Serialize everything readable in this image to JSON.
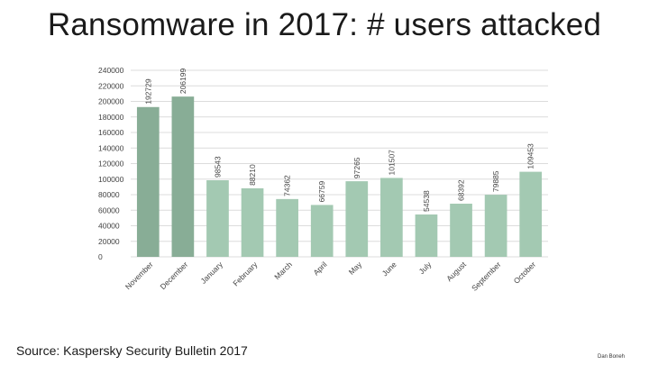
{
  "slide": {
    "title": "Ransomware in 2017:  # users attacked",
    "source": "Source: Kaspersky Security Bulletin 2017",
    "author": "Dan Boneh"
  },
  "colors": {
    "bar_dark": "#88ad96",
    "bar_light": "#a3c9b2",
    "grid": "#dcdcdc",
    "tick_text": "#444444"
  },
  "chart_data": {
    "type": "bar",
    "title": "Ransomware in 2017:  # users attacked",
    "xlabel": "",
    "ylabel": "",
    "ylim": [
      0,
      240000
    ],
    "yticks": [
      0,
      20000,
      40000,
      60000,
      80000,
      100000,
      120000,
      140000,
      160000,
      180000,
      200000,
      220000,
      240000
    ],
    "grid": true,
    "categories": [
      "November",
      "December",
      "January",
      "February",
      "March",
      "April",
      "May",
      "June",
      "July",
      "August",
      "September",
      "October"
    ],
    "values": [
      192729,
      206199,
      98543,
      88210,
      74362,
      66759,
      97265,
      101507,
      54538,
      68392,
      79885,
      109453
    ],
    "value_labels": [
      "192729",
      "206199",
      "98543",
      "88210",
      "74362",
      "66759",
      "97265",
      "101507",
      "54538",
      "68392",
      "79885",
      "109453"
    ],
    "bar_shades": [
      "dark",
      "dark",
      "light",
      "light",
      "light",
      "light",
      "light",
      "light",
      "light",
      "light",
      "light",
      "light"
    ]
  }
}
